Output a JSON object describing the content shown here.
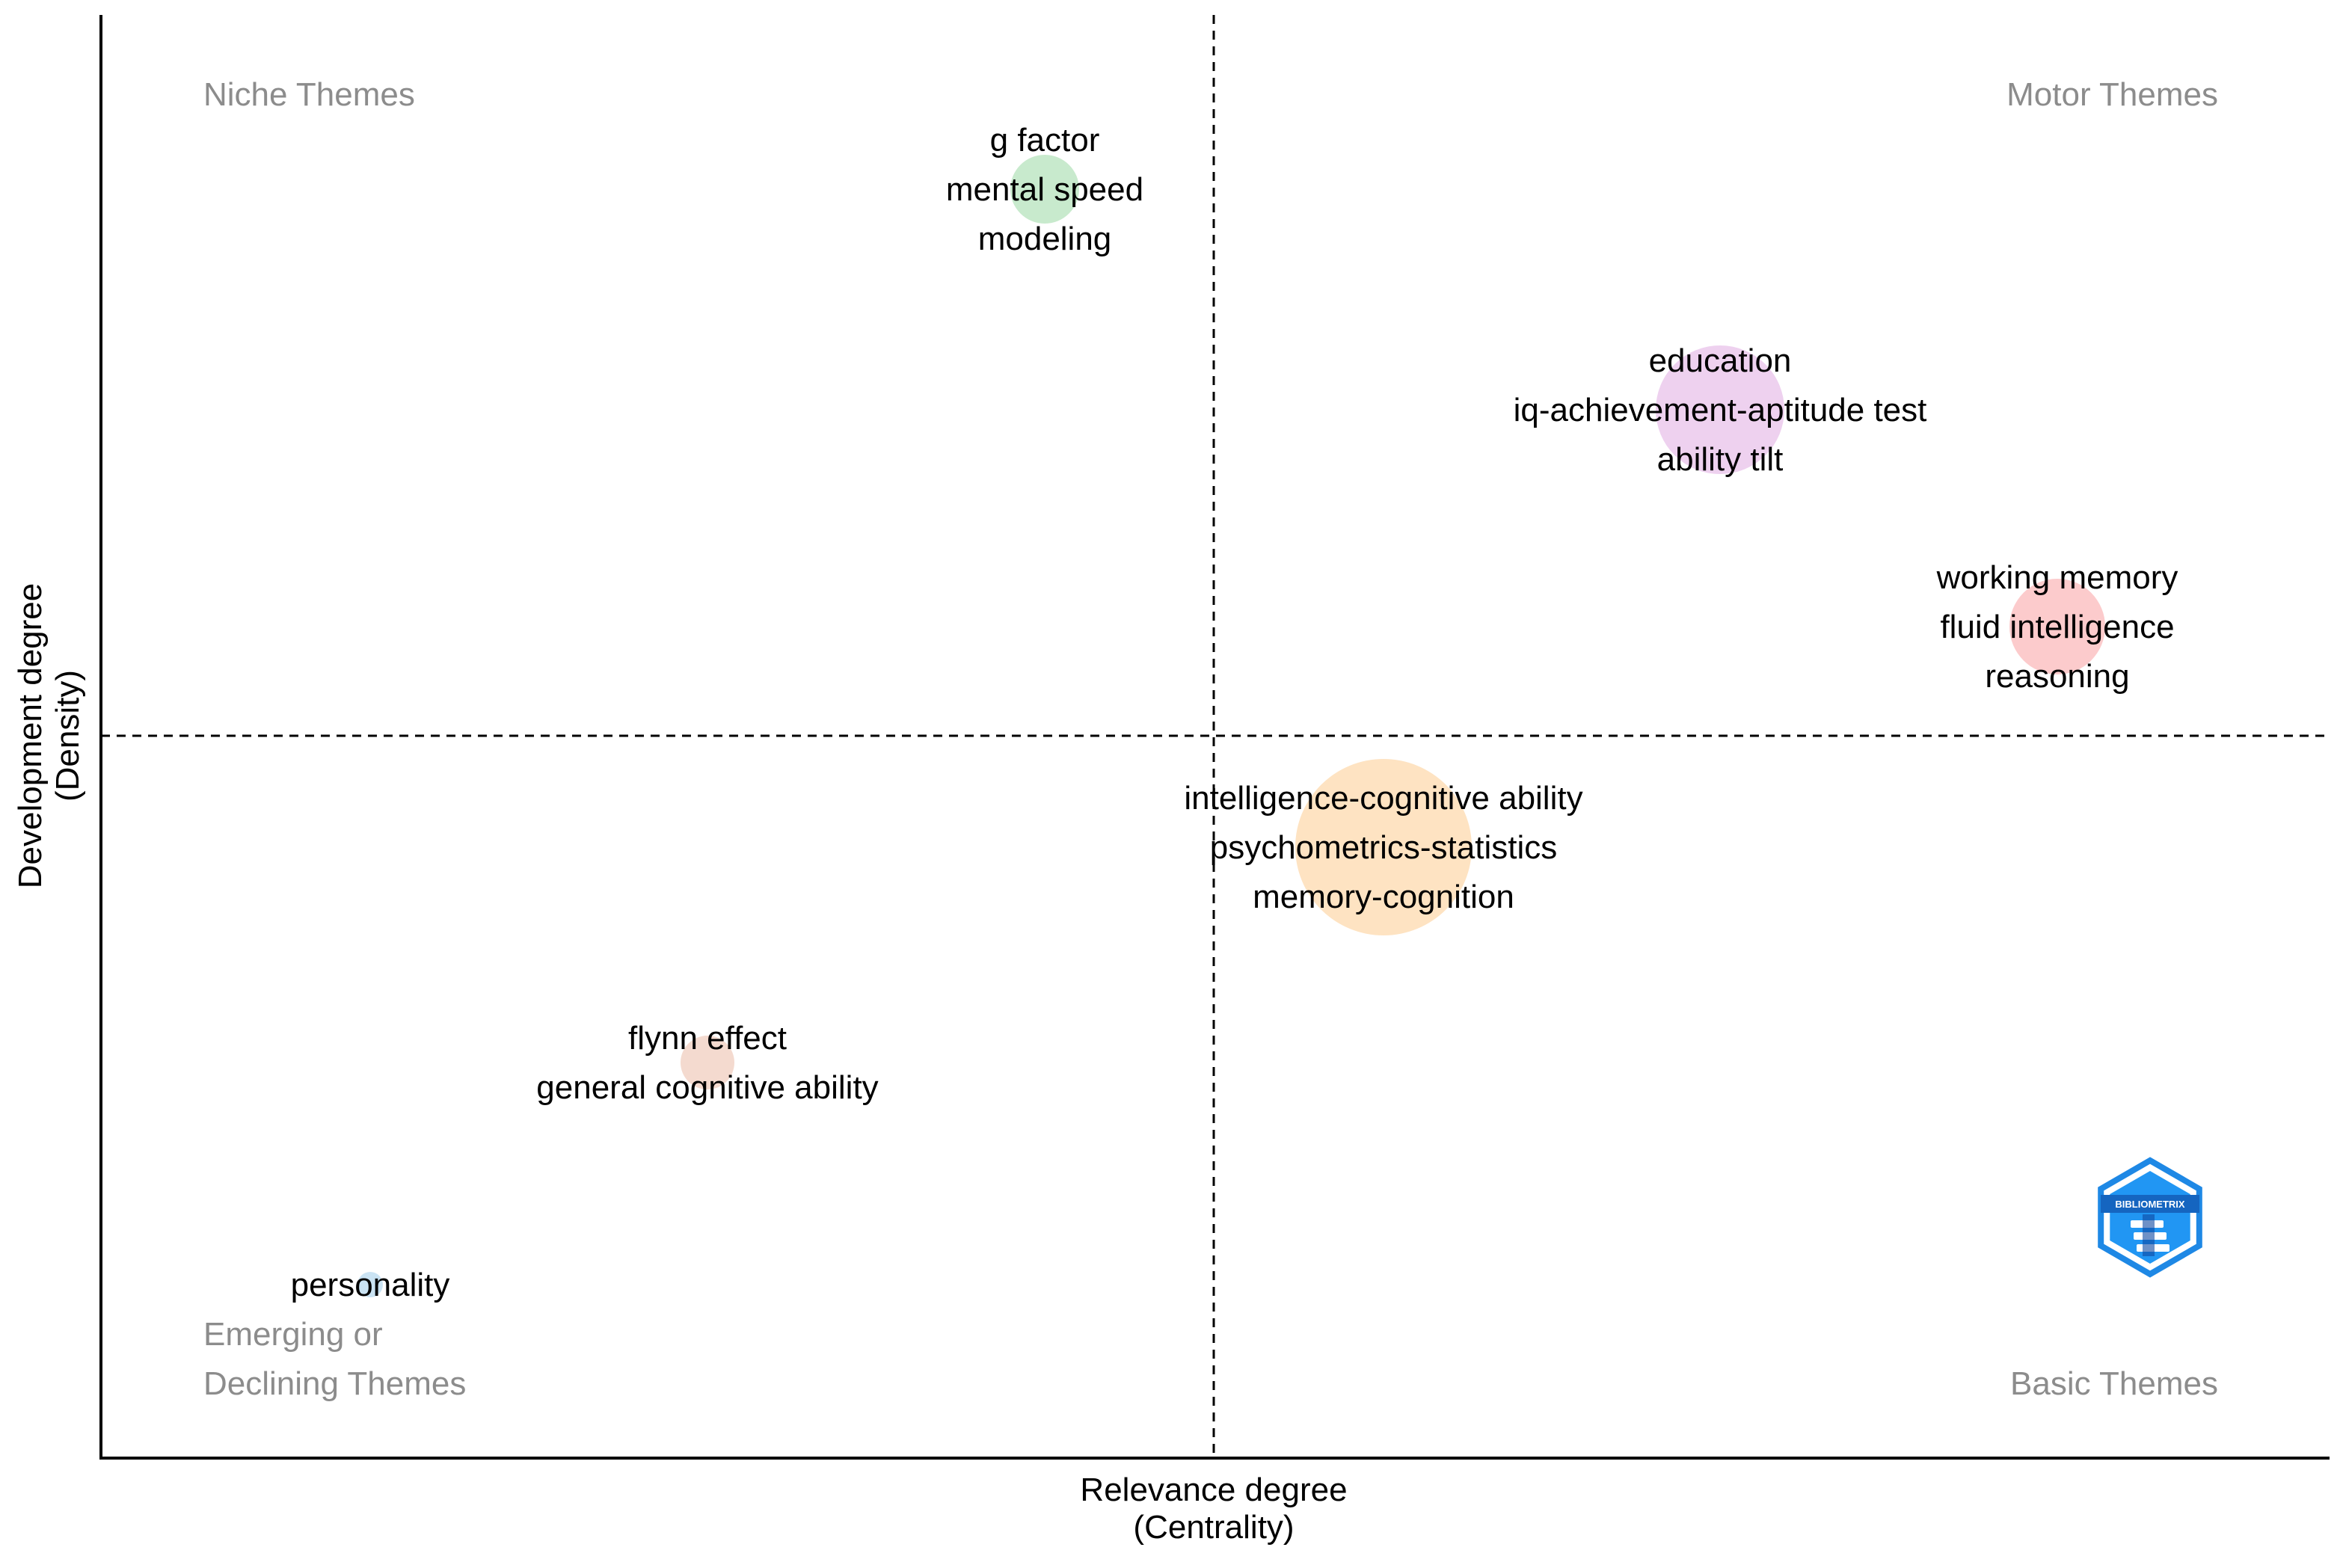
{
  "chart_data": {
    "type": "scatter",
    "xlabel": [
      "Relevance degree",
      "(Centrality)"
    ],
    "ylabel": [
      "Development degree",
      "(Density)"
    ],
    "grid": false,
    "quadrant_labels": {
      "top_left": [
        "Niche Themes"
      ],
      "top_right": [
        "Motor Themes"
      ],
      "bottom_left": [
        "Emerging or",
        "Declining Themes"
      ],
      "bottom_right": [
        "Basic Themes"
      ]
    },
    "reference_lines": {
      "vertical": "dashed",
      "horizontal": "dashed"
    },
    "clusters": [
      {
        "id": "g-factor",
        "labels": [
          "g factor",
          "mental speed",
          "modeling"
        ],
        "color": "#b5e3bc"
      },
      {
        "id": "education",
        "labels": [
          "education",
          "iq-achievement-aptitude test",
          "ability tilt"
        ],
        "color": "#e8c2ea"
      },
      {
        "id": "working-memory",
        "labels": [
          "working memory",
          "fluid intelligence",
          "reasoning"
        ],
        "color": "#fbb9bb"
      },
      {
        "id": "intelligence",
        "labels": [
          "intelligence-cognitive ability",
          "psychometrics-statistics",
          "memory-cognition"
        ],
        "color": "#fdd9ae"
      },
      {
        "id": "flynn",
        "labels": [
          "flynn effect",
          "general cognitive ability"
        ],
        "color": "#f0cdbf"
      },
      {
        "id": "personality",
        "labels": [
          "personality"
        ],
        "color": "#b8d9ef"
      }
    ],
    "watermark": "BIBLIOMETRIX"
  }
}
